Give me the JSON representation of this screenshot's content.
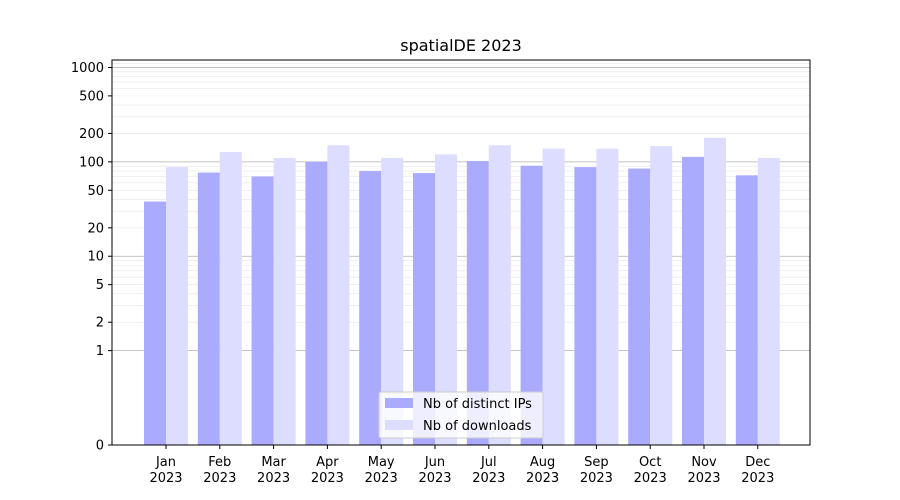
{
  "chart_data": {
    "type": "bar",
    "title": "spatialDE 2023",
    "xlabel": "",
    "ylabel": "",
    "yscale": "symlog",
    "ylim": [
      0,
      1200
    ],
    "grid": "horizontal",
    "legend_placement": "bottom-center",
    "categories": [
      "Jan\n2023",
      "Feb\n2023",
      "Mar\n2023",
      "Apr\n2023",
      "May\n2023",
      "Jun\n2023",
      "Jul\n2023",
      "Aug\n2023",
      "Sep\n2023",
      "Oct\n2023",
      "Nov\n2023",
      "Dec\n2023"
    ],
    "category_lines": [
      [
        "Jan",
        "2023"
      ],
      [
        "Feb",
        "2023"
      ],
      [
        "Mar",
        "2023"
      ],
      [
        "Apr",
        "2023"
      ],
      [
        "May",
        "2023"
      ],
      [
        "Jun",
        "2023"
      ],
      [
        "Jul",
        "2023"
      ],
      [
        "Aug",
        "2023"
      ],
      [
        "Sep",
        "2023"
      ],
      [
        "Oct",
        "2023"
      ],
      [
        "Nov",
        "2023"
      ],
      [
        "Dec",
        "2023"
      ]
    ],
    "yticks": [
      0,
      1,
      2,
      5,
      10,
      20,
      50,
      100,
      200,
      500,
      1000
    ],
    "ytick_labels": [
      "0",
      "1",
      "2",
      "5",
      "10",
      "20",
      "50",
      "100",
      "200",
      "500",
      "1000"
    ],
    "series": [
      {
        "name": "Nb of distinct IPs",
        "color": "#aaaaff",
        "values": [
          38,
          77,
          70,
          100,
          80,
          76,
          102,
          91,
          88,
          85,
          113,
          72
        ]
      },
      {
        "name": "Nb of downloads",
        "color": "#ddddff",
        "values": [
          88,
          127,
          110,
          150,
          110,
          120,
          150,
          138,
          138,
          147,
          180,
          110
        ]
      }
    ]
  }
}
